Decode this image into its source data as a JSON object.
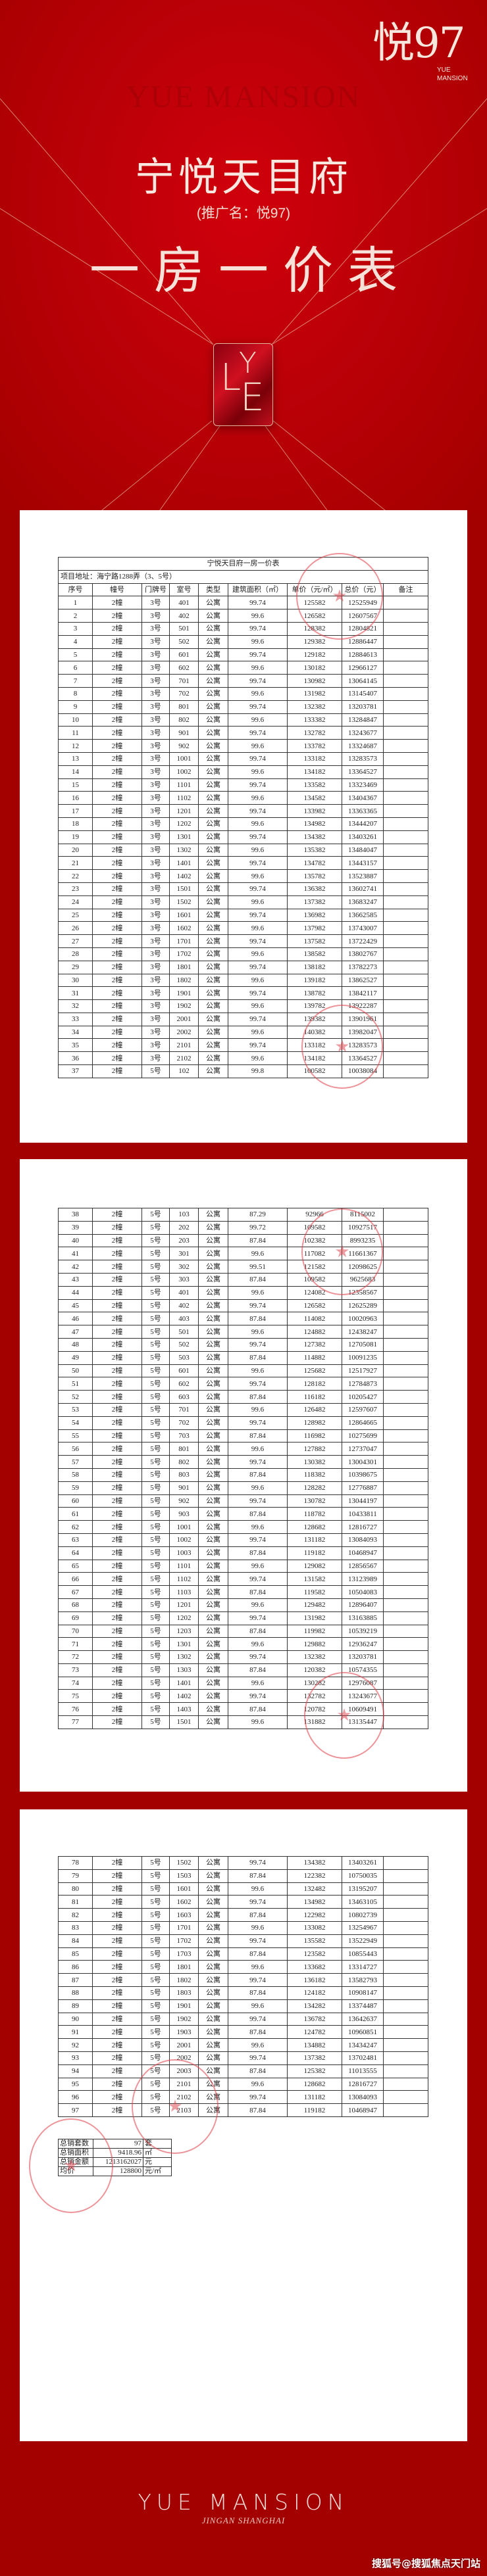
{
  "colors": {
    "background": "#a30000",
    "hero": "#c4000a",
    "accent_line": "#e8b9a0",
    "stamp": "#dc3c46"
  },
  "brand": {
    "logo_cn": "悦97",
    "logo_en_1": "YUE",
    "logo_en_2": "MANSION",
    "ghost_text": "YUE MANSION",
    "emblem_letters": "LYE"
  },
  "hero": {
    "title": "宁悦天目府",
    "subtitle": "(推广名：悦97)",
    "heading": "一房一价表"
  },
  "table": {
    "title": "宁悦天目府一房一价表",
    "address": "项目地址：海宁路1288弄（3、5号）",
    "columns": [
      "序号",
      "幢号",
      "门牌号",
      "室号",
      "类型",
      "建筑面积（㎡）",
      "单价（元/㎡）",
      "总价（元）",
      "备注"
    ],
    "pages": [
      [
        [
          "1",
          "2幢",
          "3号",
          "401",
          "公寓",
          "99.74",
          "125582",
          "12525949"
        ],
        [
          "2",
          "2幢",
          "3号",
          "402",
          "公寓",
          "99.6",
          "126582",
          "12607567"
        ],
        [
          "3",
          "2幢",
          "3号",
          "501",
          "公寓",
          "99.74",
          "128382",
          "12804821"
        ],
        [
          "4",
          "2幢",
          "3号",
          "502",
          "公寓",
          "99.6",
          "129382",
          "12886447"
        ],
        [
          "5",
          "2幢",
          "3号",
          "601",
          "公寓",
          "99.74",
          "129182",
          "12884613"
        ],
        [
          "6",
          "2幢",
          "3号",
          "602",
          "公寓",
          "99.6",
          "130182",
          "12966127"
        ],
        [
          "7",
          "2幢",
          "3号",
          "701",
          "公寓",
          "99.74",
          "130982",
          "13064145"
        ],
        [
          "8",
          "2幢",
          "3号",
          "702",
          "公寓",
          "99.6",
          "131982",
          "13145407"
        ],
        [
          "9",
          "2幢",
          "3号",
          "801",
          "公寓",
          "99.74",
          "132382",
          "13203781"
        ],
        [
          "10",
          "2幢",
          "3号",
          "802",
          "公寓",
          "99.6",
          "133382",
          "13284847"
        ],
        [
          "11",
          "2幢",
          "3号",
          "901",
          "公寓",
          "99.74",
          "132782",
          "13243677"
        ],
        [
          "12",
          "2幢",
          "3号",
          "902",
          "公寓",
          "99.6",
          "133782",
          "13324687"
        ],
        [
          "13",
          "2幢",
          "3号",
          "1001",
          "公寓",
          "99.74",
          "133182",
          "13283573"
        ],
        [
          "14",
          "2幢",
          "3号",
          "1002",
          "公寓",
          "99.6",
          "134182",
          "13364527"
        ],
        [
          "15",
          "2幢",
          "3号",
          "1101",
          "公寓",
          "99.74",
          "133582",
          "13323469"
        ],
        [
          "16",
          "2幢",
          "3号",
          "1102",
          "公寓",
          "99.6",
          "134582",
          "13404367"
        ],
        [
          "17",
          "2幢",
          "3号",
          "1201",
          "公寓",
          "99.74",
          "133982",
          "13363365"
        ],
        [
          "18",
          "2幢",
          "3号",
          "1202",
          "公寓",
          "99.6",
          "134982",
          "13444207"
        ],
        [
          "19",
          "2幢",
          "3号",
          "1301",
          "公寓",
          "99.74",
          "134382",
          "13403261"
        ],
        [
          "20",
          "2幢",
          "3号",
          "1302",
          "公寓",
          "99.6",
          "135382",
          "13484047"
        ],
        [
          "21",
          "2幢",
          "3号",
          "1401",
          "公寓",
          "99.74",
          "134782",
          "13443157"
        ],
        [
          "22",
          "2幢",
          "3号",
          "1402",
          "公寓",
          "99.6",
          "135782",
          "13523887"
        ],
        [
          "23",
          "2幢",
          "3号",
          "1501",
          "公寓",
          "99.74",
          "136382",
          "13602741"
        ],
        [
          "24",
          "2幢",
          "3号",
          "1502",
          "公寓",
          "99.6",
          "137382",
          "13683247"
        ],
        [
          "25",
          "2幢",
          "3号",
          "1601",
          "公寓",
          "99.74",
          "136982",
          "13662585"
        ],
        [
          "26",
          "2幢",
          "3号",
          "1602",
          "公寓",
          "99.6",
          "137982",
          "13743007"
        ],
        [
          "27",
          "2幢",
          "3号",
          "1701",
          "公寓",
          "99.74",
          "137582",
          "13722429"
        ],
        [
          "28",
          "2幢",
          "3号",
          "1702",
          "公寓",
          "99.6",
          "138582",
          "13802767"
        ],
        [
          "29",
          "2幢",
          "3号",
          "1801",
          "公寓",
          "99.74",
          "138182",
          "13782273"
        ],
        [
          "30",
          "2幢",
          "3号",
          "1802",
          "公寓",
          "99.6",
          "139182",
          "13862527"
        ],
        [
          "31",
          "2幢",
          "3号",
          "1901",
          "公寓",
          "99.74",
          "138782",
          "13842117"
        ],
        [
          "32",
          "2幢",
          "3号",
          "1902",
          "公寓",
          "99.6",
          "139782",
          "13922287"
        ],
        [
          "33",
          "2幢",
          "3号",
          "2001",
          "公寓",
          "99.74",
          "139382",
          "13901961"
        ],
        [
          "34",
          "2幢",
          "3号",
          "2002",
          "公寓",
          "99.6",
          "140382",
          "13982047"
        ],
        [
          "35",
          "2幢",
          "3号",
          "2101",
          "公寓",
          "99.74",
          "133182",
          "13283573"
        ],
        [
          "36",
          "2幢",
          "3号",
          "2102",
          "公寓",
          "99.6",
          "134182",
          "13364527"
        ],
        [
          "37",
          "2幢",
          "5号",
          "102",
          "公寓",
          "99.8",
          "100582",
          "10038084"
        ]
      ],
      [
        [
          "38",
          "2幢",
          "5号",
          "103",
          "公寓",
          "87.29",
          "92966",
          "8115002"
        ],
        [
          "39",
          "2幢",
          "5号",
          "202",
          "公寓",
          "99.72",
          "109582",
          "10927517"
        ],
        [
          "40",
          "2幢",
          "5号",
          "203",
          "公寓",
          "87.84",
          "102382",
          "8993235"
        ],
        [
          "41",
          "2幢",
          "5号",
          "301",
          "公寓",
          "99.6",
          "117082",
          "11661367"
        ],
        [
          "42",
          "2幢",
          "5号",
          "302",
          "公寓",
          "99.51",
          "121582",
          "12098625"
        ],
        [
          "43",
          "2幢",
          "5号",
          "303",
          "公寓",
          "87.84",
          "109582",
          "9625683"
        ],
        [
          "44",
          "2幢",
          "5号",
          "401",
          "公寓",
          "99.6",
          "124082",
          "12358567"
        ],
        [
          "45",
          "2幢",
          "5号",
          "402",
          "公寓",
          "99.74",
          "126582",
          "12625289"
        ],
        [
          "46",
          "2幢",
          "5号",
          "403",
          "公寓",
          "87.84",
          "114082",
          "10020963"
        ],
        [
          "47",
          "2幢",
          "5号",
          "501",
          "公寓",
          "99.6",
          "124882",
          "12438247"
        ],
        [
          "48",
          "2幢",
          "5号",
          "502",
          "公寓",
          "99.74",
          "127382",
          "12705081"
        ],
        [
          "49",
          "2幢",
          "5号",
          "503",
          "公寓",
          "87.84",
          "114882",
          "10091235"
        ],
        [
          "50",
          "2幢",
          "5号",
          "601",
          "公寓",
          "99.6",
          "125682",
          "12517927"
        ],
        [
          "51",
          "2幢",
          "5号",
          "602",
          "公寓",
          "99.74",
          "128182",
          "12784873"
        ],
        [
          "52",
          "2幢",
          "5号",
          "603",
          "公寓",
          "87.84",
          "116182",
          "10205427"
        ],
        [
          "53",
          "2幢",
          "5号",
          "701",
          "公寓",
          "99.6",
          "126482",
          "12597607"
        ],
        [
          "54",
          "2幢",
          "5号",
          "702",
          "公寓",
          "99.74",
          "128982",
          "12864665"
        ],
        [
          "55",
          "2幢",
          "5号",
          "703",
          "公寓",
          "87.84",
          "116982",
          "10275699"
        ],
        [
          "56",
          "2幢",
          "5号",
          "801",
          "公寓",
          "99.6",
          "127882",
          "12737047"
        ],
        [
          "57",
          "2幢",
          "5号",
          "802",
          "公寓",
          "99.74",
          "130382",
          "13004301"
        ],
        [
          "58",
          "2幢",
          "5号",
          "803",
          "公寓",
          "87.84",
          "118382",
          "10398675"
        ],
        [
          "59",
          "2幢",
          "5号",
          "901",
          "公寓",
          "99.6",
          "128282",
          "12776887"
        ],
        [
          "60",
          "2幢",
          "5号",
          "902",
          "公寓",
          "99.74",
          "130782",
          "13044197"
        ],
        [
          "61",
          "2幢",
          "5号",
          "903",
          "公寓",
          "87.84",
          "118782",
          "10433811"
        ],
        [
          "62",
          "2幢",
          "5号",
          "1001",
          "公寓",
          "99.6",
          "128682",
          "12816727"
        ],
        [
          "63",
          "2幢",
          "5号",
          "1002",
          "公寓",
          "99.74",
          "131182",
          "13084093"
        ],
        [
          "64",
          "2幢",
          "5号",
          "1003",
          "公寓",
          "87.84",
          "119182",
          "10468947"
        ],
        [
          "65",
          "2幢",
          "5号",
          "1101",
          "公寓",
          "99.6",
          "129082",
          "12856567"
        ],
        [
          "66",
          "2幢",
          "5号",
          "1102",
          "公寓",
          "99.74",
          "131582",
          "13123989"
        ],
        [
          "67",
          "2幢",
          "5号",
          "1103",
          "公寓",
          "87.84",
          "119582",
          "10504083"
        ],
        [
          "68",
          "2幢",
          "5号",
          "1201",
          "公寓",
          "99.6",
          "129482",
          "12896407"
        ],
        [
          "69",
          "2幢",
          "5号",
          "1202",
          "公寓",
          "99.74",
          "131982",
          "13163885"
        ],
        [
          "70",
          "2幢",
          "5号",
          "1203",
          "公寓",
          "87.84",
          "119982",
          "10539219"
        ],
        [
          "71",
          "2幢",
          "5号",
          "1301",
          "公寓",
          "99.6",
          "129882",
          "12936247"
        ],
        [
          "72",
          "2幢",
          "5号",
          "1302",
          "公寓",
          "99.74",
          "132382",
          "13203781"
        ],
        [
          "73",
          "2幢",
          "5号",
          "1303",
          "公寓",
          "87.84",
          "120382",
          "10574355"
        ],
        [
          "74",
          "2幢",
          "5号",
          "1401",
          "公寓",
          "99.6",
          "130282",
          "12976087"
        ],
        [
          "75",
          "2幢",
          "5号",
          "1402",
          "公寓",
          "99.74",
          "132782",
          "13243677"
        ],
        [
          "76",
          "2幢",
          "5号",
          "1403",
          "公寓",
          "87.84",
          "120782",
          "10609491"
        ],
        [
          "77",
          "2幢",
          "5号",
          "1501",
          "公寓",
          "99.6",
          "131882",
          "13135447"
        ]
      ],
      [
        [
          "78",
          "2幢",
          "5号",
          "1502",
          "公寓",
          "99.74",
          "134382",
          "13403261"
        ],
        [
          "79",
          "2幢",
          "5号",
          "1503",
          "公寓",
          "87.84",
          "122382",
          "10750035"
        ],
        [
          "80",
          "2幢",
          "5号",
          "1601",
          "公寓",
          "99.6",
          "132482",
          "13195207"
        ],
        [
          "81",
          "2幢",
          "5号",
          "1602",
          "公寓",
          "99.74",
          "134982",
          "13463105"
        ],
        [
          "82",
          "2幢",
          "5号",
          "1603",
          "公寓",
          "87.84",
          "122982",
          "10802739"
        ],
        [
          "83",
          "2幢",
          "5号",
          "1701",
          "公寓",
          "99.6",
          "133082",
          "13254967"
        ],
        [
          "84",
          "2幢",
          "5号",
          "1702",
          "公寓",
          "99.74",
          "135582",
          "13522949"
        ],
        [
          "85",
          "2幢",
          "5号",
          "1703",
          "公寓",
          "87.84",
          "123582",
          "10855443"
        ],
        [
          "86",
          "2幢",
          "5号",
          "1801",
          "公寓",
          "99.6",
          "133682",
          "13314727"
        ],
        [
          "87",
          "2幢",
          "5号",
          "1802",
          "公寓",
          "99.74",
          "136182",
          "13582793"
        ],
        [
          "88",
          "2幢",
          "5号",
          "1803",
          "公寓",
          "87.84",
          "124182",
          "10908147"
        ],
        [
          "89",
          "2幢",
          "5号",
          "1901",
          "公寓",
          "99.6",
          "134282",
          "13374487"
        ],
        [
          "90",
          "2幢",
          "5号",
          "1902",
          "公寓",
          "99.74",
          "136782",
          "13642637"
        ],
        [
          "91",
          "2幢",
          "5号",
          "1903",
          "公寓",
          "87.84",
          "124782",
          "10960851"
        ],
        [
          "92",
          "2幢",
          "5号",
          "2001",
          "公寓",
          "99.6",
          "134882",
          "13434247"
        ],
        [
          "93",
          "2幢",
          "5号",
          "2002",
          "公寓",
          "99.74",
          "137382",
          "13702481"
        ],
        [
          "94",
          "2幢",
          "5号",
          "2003",
          "公寓",
          "87.84",
          "125382",
          "11013555"
        ],
        [
          "95",
          "2幢",
          "5号",
          "2101",
          "公寓",
          "99.6",
          "128682",
          "12816727"
        ],
        [
          "96",
          "2幢",
          "5号",
          "2102",
          "公寓",
          "99.74",
          "131182",
          "13084093"
        ],
        [
          "97",
          "2幢",
          "5号",
          "2103",
          "公寓",
          "87.84",
          "119182",
          "10468947"
        ]
      ]
    ]
  },
  "summary": [
    {
      "label": "总销套数",
      "value": "97",
      "unit": "套"
    },
    {
      "label": "总销面积",
      "value": "9418.96",
      "unit": "㎡"
    },
    {
      "label": "总销金额",
      "value": "1213162027",
      "unit": "元"
    },
    {
      "label": "均价",
      "value": "128800",
      "unit": "元/㎡"
    }
  ],
  "footer": {
    "brand": "YUE MANSION",
    "location": "JINGAN  SHANGHAI",
    "watermark": "搜狐号@搜狐焦点天门站"
  }
}
